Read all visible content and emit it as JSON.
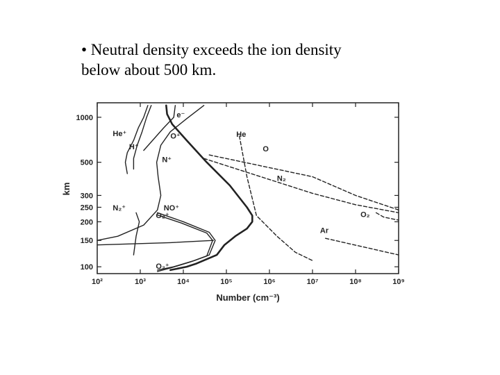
{
  "slide": {
    "bullet_line1": "• Neutral density exceeds the ion density",
    "bullet_line2": "below about  500 km."
  },
  "chart_data": {
    "type": "line",
    "title": "",
    "xlabel": "Number (cm⁻³)",
    "ylabel": "km",
    "x_scale": "log",
    "y_scale": "log",
    "xlim": [
      100,
      1000000000
    ],
    "ylim": [
      90,
      1250
    ],
    "x_ticks": [
      100,
      1000,
      10000,
      100000,
      1000000,
      10000000,
      100000000,
      1000000000
    ],
    "x_tick_labels": [
      "10²",
      "10³",
      "10⁴",
      "10⁵",
      "10⁶",
      "10⁷",
      "10⁸",
      "10⁹"
    ],
    "y_ticks": [
      100,
      150,
      200,
      250,
      300,
      500,
      1000
    ],
    "y_tick_labels": [
      "100",
      "150",
      "200",
      "250",
      "300",
      "500",
      "1000"
    ],
    "series": [
      {
        "name": "e⁻",
        "style": "bold",
        "points": [
          [
            4000,
            1200
          ],
          [
            4200,
            1050
          ],
          [
            5500,
            900
          ],
          [
            12000,
            700
          ],
          [
            35000,
            500
          ],
          [
            120000,
            350
          ],
          [
            300000,
            250
          ],
          [
            400000,
            220
          ],
          [
            400000,
            200
          ],
          [
            300000,
            180
          ],
          [
            160000,
            160
          ],
          [
            90000,
            140
          ],
          [
            60000,
            120
          ],
          [
            20000,
            105
          ],
          [
            12000,
            100
          ],
          [
            5000,
            95
          ]
        ]
      },
      {
        "name": "He⁺",
        "style": "solid",
        "points": [
          [
            1500,
            1200
          ],
          [
            1200,
            1000
          ],
          [
            900,
            850
          ],
          [
            700,
            700
          ],
          [
            500,
            580
          ],
          [
            450,
            500
          ],
          [
            500,
            420
          ]
        ]
      },
      {
        "name": "H⁺",
        "style": "solid",
        "points": [
          [
            1800,
            1200
          ],
          [
            1400,
            1000
          ],
          [
            1100,
            800
          ],
          [
            850,
            650
          ],
          [
            700,
            530
          ],
          [
            700,
            450
          ]
        ]
      },
      {
        "name": "O⁺",
        "style": "solid",
        "points": [
          [
            30000,
            1200
          ],
          [
            12000,
            980
          ],
          [
            5000,
            800
          ],
          [
            3000,
            650
          ],
          [
            2400,
            500
          ],
          [
            2600,
            400
          ],
          [
            3000,
            300
          ],
          [
            2500,
            240
          ],
          [
            1200,
            190
          ],
          [
            300,
            160
          ],
          [
            100,
            150
          ]
        ]
      },
      {
        "name": "N⁺",
        "style": "solid",
        "points": [
          [
            6500,
            1200
          ],
          [
            6000,
            1000
          ],
          [
            3500,
            850
          ],
          [
            1200,
            600
          ]
        ]
      },
      {
        "name": "N₂⁺",
        "style": "solid",
        "points": [
          [
            800,
            230
          ],
          [
            950,
            200
          ],
          [
            800,
            160
          ],
          [
            700,
            120
          ]
        ]
      },
      {
        "name": "NO⁺",
        "style": "solid",
        "points": [
          [
            2500,
            230
          ],
          [
            10000,
            200
          ],
          [
            40000,
            170
          ],
          [
            55000,
            150
          ],
          [
            40000,
            120
          ],
          [
            18000,
            110
          ],
          [
            6000,
            100
          ],
          [
            2500,
            95
          ]
        ]
      },
      {
        "name": "O₂⁺",
        "style": "solid",
        "points": [
          [
            2500,
            222
          ],
          [
            9000,
            196
          ],
          [
            35000,
            168
          ],
          [
            48000,
            150
          ],
          [
            35000,
            118
          ],
          [
            15000,
            108
          ],
          [
            5000,
            98
          ],
          [
            2500,
            93
          ]
        ]
      },
      {
        "name": "",
        "style": "solid",
        "points": [
          [
            100,
            140
          ],
          [
            5000,
            145
          ],
          [
            50000,
            150
          ]
        ]
      },
      {
        "name": "He",
        "style": "dashed",
        "points": [
          [
            200000,
            750
          ],
          [
            300000,
            400
          ],
          [
            500000,
            220
          ],
          [
            1500000,
            160
          ],
          [
            4000000,
            125
          ],
          [
            10000000,
            110
          ]
        ]
      },
      {
        "name": "O",
        "style": "dashed",
        "points": [
          [
            40000,
            560
          ],
          [
            10000000,
            400
          ],
          [
            100000000,
            300
          ],
          [
            1000000000,
            240
          ]
        ]
      },
      {
        "name": "N₂",
        "style": "dashed",
        "points": [
          [
            30000,
            530
          ],
          [
            10000000,
            310
          ],
          [
            100000000,
            260
          ],
          [
            1000000000,
            230
          ]
        ]
      },
      {
        "name": "O₂",
        "style": "dashed",
        "points": [
          [
            300000000,
            230
          ],
          [
            450000000,
            215
          ],
          [
            1000000000,
            205
          ]
        ]
      },
      {
        "name": "Ar",
        "style": "dashed",
        "points": [
          [
            20000000,
            155
          ],
          [
            1000000000,
            120
          ]
        ]
      }
    ],
    "labels": [
      {
        "text": "e⁻",
        "x": 7000,
        "y": 1000
      },
      {
        "text": "He⁺",
        "x": 230,
        "y": 750
      },
      {
        "text": "O⁺",
        "x": 5000,
        "y": 720
      },
      {
        "text": "H⁺",
        "x": 550,
        "y": 610
      },
      {
        "text": "N⁺",
        "x": 3200,
        "y": 500
      },
      {
        "text": "N₂⁺",
        "x": 230,
        "y": 238
      },
      {
        "text": "NO⁺",
        "x": 3500,
        "y": 238
      },
      {
        "text": "O₂⁺",
        "x": 2300,
        "y": 212
      },
      {
        "text": "O₂⁺",
        "x": 2300,
        "y": 97
      },
      {
        "text": "He",
        "x": 170000,
        "y": 740
      },
      {
        "text": "O",
        "x": 700000,
        "y": 590
      },
      {
        "text": "N₂",
        "x": 1500000,
        "y": 375
      },
      {
        "text": "O₂",
        "x": 130000000,
        "y": 215
      },
      {
        "text": "Ar",
        "x": 15000000,
        "y": 168
      }
    ]
  }
}
